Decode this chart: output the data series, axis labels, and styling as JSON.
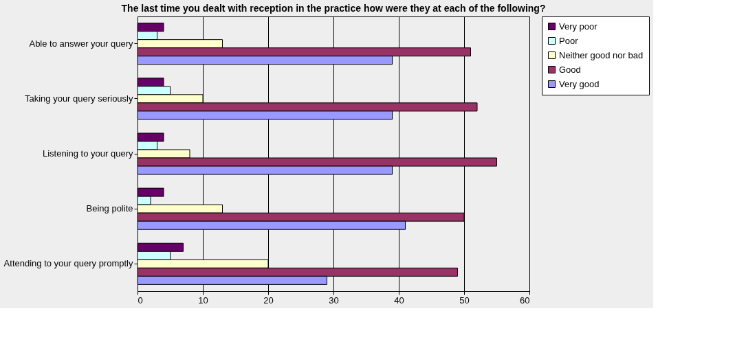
{
  "chart_data": {
    "type": "bar",
    "orientation": "horizontal",
    "title": "The last time you dealt with reception in the practice how were they at each of the following?",
    "categories": [
      "Able to answer your query",
      "Taking your query seriously",
      "Listening to your query",
      "Being polite",
      "Attending to your query promptly"
    ],
    "series": [
      {
        "name": "Very poor",
        "color": "#660066",
        "values": [
          4,
          4,
          4,
          4,
          7
        ]
      },
      {
        "name": "Poor",
        "color": "#ccffff",
        "values": [
          3,
          5,
          3,
          2,
          5
        ]
      },
      {
        "name": "Neither good nor bad",
        "color": "#ffffcc",
        "values": [
          13,
          10,
          8,
          13,
          20
        ]
      },
      {
        "name": "Good",
        "color": "#993366",
        "values": [
          51,
          52,
          55,
          50,
          49
        ]
      },
      {
        "name": "Very good",
        "color": "#9999ff",
        "values": [
          39,
          39,
          39,
          41,
          29
        ]
      }
    ],
    "xlim": [
      0,
      60
    ],
    "xticks": [
      0,
      10,
      20,
      30,
      40,
      50,
      60
    ],
    "grid": "x",
    "legend": "right"
  }
}
